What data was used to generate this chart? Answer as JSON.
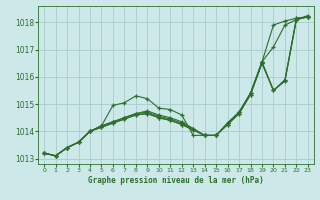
{
  "xlabel": "Graphe pression niveau de la mer (hPa)",
  "bg_color": "#cce8e8",
  "grid_color": "#aacccc",
  "line_color": "#2d6e2d",
  "ylim": [
    1012.8,
    1018.6
  ],
  "xlim": [
    -0.5,
    23.5
  ],
  "yticks": [
    1013,
    1014,
    1015,
    1016,
    1017,
    1018
  ],
  "xticks": [
    0,
    1,
    2,
    3,
    4,
    5,
    6,
    7,
    8,
    9,
    10,
    11,
    12,
    13,
    14,
    15,
    16,
    17,
    18,
    19,
    20,
    21,
    22,
    23
  ],
  "lines": [
    [
      1013.2,
      1013.1,
      1013.4,
      1013.6,
      1014.0,
      1014.2,
      1014.95,
      1015.05,
      1015.3,
      1015.2,
      1014.85,
      1014.8,
      1014.6,
      1013.85,
      1013.85,
      1013.85,
      1014.3,
      1014.7,
      1015.4,
      1016.55,
      1017.1,
      1017.9,
      1018.1,
      1018.25
    ],
    [
      1013.2,
      1013.1,
      1013.4,
      1013.6,
      1014.0,
      1014.15,
      1014.3,
      1014.45,
      1014.6,
      1014.65,
      1014.5,
      1014.4,
      1014.25,
      1014.05,
      1013.85,
      1013.85,
      1014.25,
      1014.65,
      1015.35,
      1016.5,
      1015.5,
      1015.85,
      1018.1,
      1018.2
    ],
    [
      1013.2,
      1013.1,
      1013.4,
      1013.6,
      1014.0,
      1014.15,
      1014.3,
      1014.45,
      1014.6,
      1014.65,
      1014.5,
      1014.4,
      1014.25,
      1014.05,
      1013.85,
      1013.85,
      1014.25,
      1014.65,
      1015.35,
      1016.5,
      1015.5,
      1015.85,
      1018.1,
      1018.2
    ],
    [
      1013.2,
      1013.1,
      1013.4,
      1013.6,
      1014.0,
      1014.2,
      1014.35,
      1014.5,
      1014.65,
      1014.75,
      1014.6,
      1014.5,
      1014.35,
      1014.1,
      1013.85,
      1013.85,
      1014.3,
      1014.7,
      1015.4,
      1016.55,
      1017.9,
      1018.05,
      1018.15,
      1018.2
    ],
    [
      1013.2,
      1013.1,
      1013.4,
      1013.6,
      1014.0,
      1014.2,
      1014.35,
      1014.5,
      1014.65,
      1014.7,
      1014.55,
      1014.45,
      1014.3,
      1014.1,
      1013.85,
      1013.85,
      1014.3,
      1014.7,
      1015.4,
      1016.55,
      1015.5,
      1015.9,
      1018.15,
      1018.2
    ]
  ]
}
